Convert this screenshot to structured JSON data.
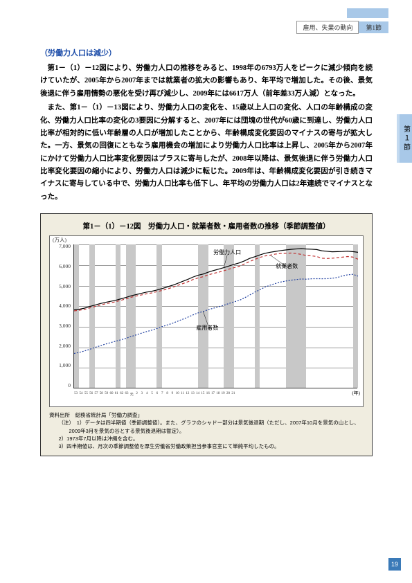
{
  "header": {
    "breadcrumb": "雇用、失業の動向",
    "tab": "第1節"
  },
  "side_tab": "第１節",
  "section_title": "（労働力人口は減少）",
  "paragraphs": [
    "第1－（1）－12図により、労働力人口の推移をみると、1998年の6793万人をピークに減少傾向を続けていたが、2005年から2007年までは就業者の拡大の影響もあり、年平均で増加した。その後、景気後退に伴う雇用情勢の悪化を受け再び減少し、2009年には6617万人（前年差33万人減）となった。",
    "また、第1－（1）－13図により、労働力人口の変化を、15歳以上人口の変化、人口の年齢構成の変化、労働力人口比率の変化の3要因に分解すると、2007年には団塊の世代が60歳に到達し、労働力人口比率が相対的に低い年齢層の人口が増加したことから、年齢構成変化要因のマイナスの寄与が拡大した。一方、景気の回復にともなう雇用機会の増加により労働力人口比率は上昇し、2005年から2007年にかけて労働力人口比率変化要因はプラスに寄与したが、2008年以降は、景気後退に伴う労働力人口比率変化要因の縮小により、労働力人口は減少に転じた。2009年は、年齢構成変化要因が引き続きマイナスに寄与している中で、労働力人口比率も低下し、年平均の労働力人口は2年連続でマイナスとなった。"
  ],
  "figure": {
    "title": "第1－（1）－12図　労働力人口・就業者数・雇用者数の推移（季節調整値）",
    "y_unit": "(万人)",
    "x_unit": "(年)",
    "y_ticks": [
      "7,000",
      "6,000",
      "5,000",
      "4,000",
      "3,000",
      "2,000",
      "1,000",
      "0"
    ],
    "x_ticks": [
      "53",
      "54",
      "55",
      "56",
      "57",
      "58",
      "59",
      "60",
      "61",
      "62",
      "63",
      "元",
      "2",
      "3",
      "4",
      "5",
      "6",
      "7",
      "8",
      "9",
      "10",
      "11",
      "12",
      "13",
      "14",
      "15",
      "16",
      "17",
      "18",
      "19",
      "20",
      "21",
      "",
      "",
      "",
      "",
      "",
      "",
      "",
      "",
      "",
      "",
      "",
      "",
      "",
      "",
      "",
      "",
      "",
      "",
      "",
      "",
      "",
      "",
      "",
      "",
      ""
    ],
    "x_small": [
      "53",
      "55",
      "57",
      "59",
      "61",
      "63",
      "2",
      "4",
      "6",
      "8",
      "10",
      "12",
      "14",
      "16",
      "18",
      "20"
    ],
    "series_labels": {
      "labor": "労働力人口",
      "employed": "就業者数",
      "employees": "雇用者数"
    },
    "shades_pct": [
      [
        2,
        4
      ],
      [
        14,
        17
      ],
      [
        36,
        40
      ],
      [
        46,
        54
      ],
      [
        72,
        77
      ],
      [
        107,
        116
      ],
      [
        132,
        141
      ],
      [
        159,
        163
      ],
      [
        187,
        203
      ],
      [
        244,
        255
      ]
    ],
    "labor_force": [
      3820,
      3850,
      3900,
      3980,
      4050,
      4120,
      4180,
      4230,
      4280,
      4350,
      4420,
      4500,
      4560,
      4620,
      4680,
      4720,
      4780,
      4850,
      4930,
      5010,
      5100,
      5200,
      5300,
      5410,
      5500,
      5560,
      5650,
      5730,
      5800,
      5870,
      5950,
      6030,
      6100,
      6200,
      6320,
      6400,
      6490,
      6570,
      6620,
      6660,
      6700,
      6730,
      6760,
      6780,
      6793,
      6776,
      6766,
      6752,
      6689,
      6666,
      6642,
      6651,
      6657,
      6669,
      6650,
      6617
    ],
    "employed_series": [
      3770,
      3800,
      3840,
      3910,
      3980,
      4050,
      4110,
      4160,
      4210,
      4280,
      4350,
      4430,
      4490,
      4540,
      4600,
      4640,
      4700,
      4760,
      4830,
      4910,
      5000,
      5090,
      5180,
      5290,
      5370,
      5430,
      5520,
      5590,
      5650,
      5720,
      5800,
      5870,
      5940,
      6050,
      6170,
      6270,
      6370,
      6440,
      6480,
      6530,
      6560,
      6570,
      6580,
      6560,
      6514,
      6462,
      6446,
      6412,
      6330,
      6316,
      6329,
      6356,
      6382,
      6412,
      6385,
      6282
    ],
    "employees_series": [
      1700,
      1750,
      1820,
      1900,
      1990,
      2070,
      2150,
      2220,
      2290,
      2360,
      2430,
      2520,
      2600,
      2680,
      2760,
      2830,
      2910,
      3000,
      3080,
      3160,
      3260,
      3360,
      3460,
      3570,
      3670,
      3740,
      3830,
      3900,
      3970,
      4040,
      4130,
      4210,
      4280,
      4400,
      4540,
      4680,
      4800,
      4930,
      5020,
      5100,
      5170,
      5220,
      5260,
      5290,
      5320,
      5310,
      5330,
      5335,
      5331,
      5335,
      5355,
      5393,
      5472,
      5523,
      5546,
      5460
    ],
    "colors": {
      "labor": "#000000",
      "employed": "#c03030",
      "employees": "#2040a0",
      "shade": "#c8c8c8",
      "grid": "#999999",
      "bg": "#ffffff"
    },
    "ylim": [
      0,
      7000
    ],
    "notes": {
      "source": "資料出所　総務省統計局「労働力調査」",
      "lines": [
        "（注）　1）データは四半期値（季節調整値）。また、グラフのシャドー部分は景気後退期（ただし、2007年10月を景気の山とし、2009年3月を景気の谷とする景気後退期は暫定）。",
        "2）1973年7月以降は沖縄を含む。",
        "3）四半期値は、月次の季節調整値を厚生労働省労働政策担当参事官室にて単純平均したもの。"
      ]
    }
  },
  "page_number": "19",
  "top_accent_color": "#a8c8e8"
}
